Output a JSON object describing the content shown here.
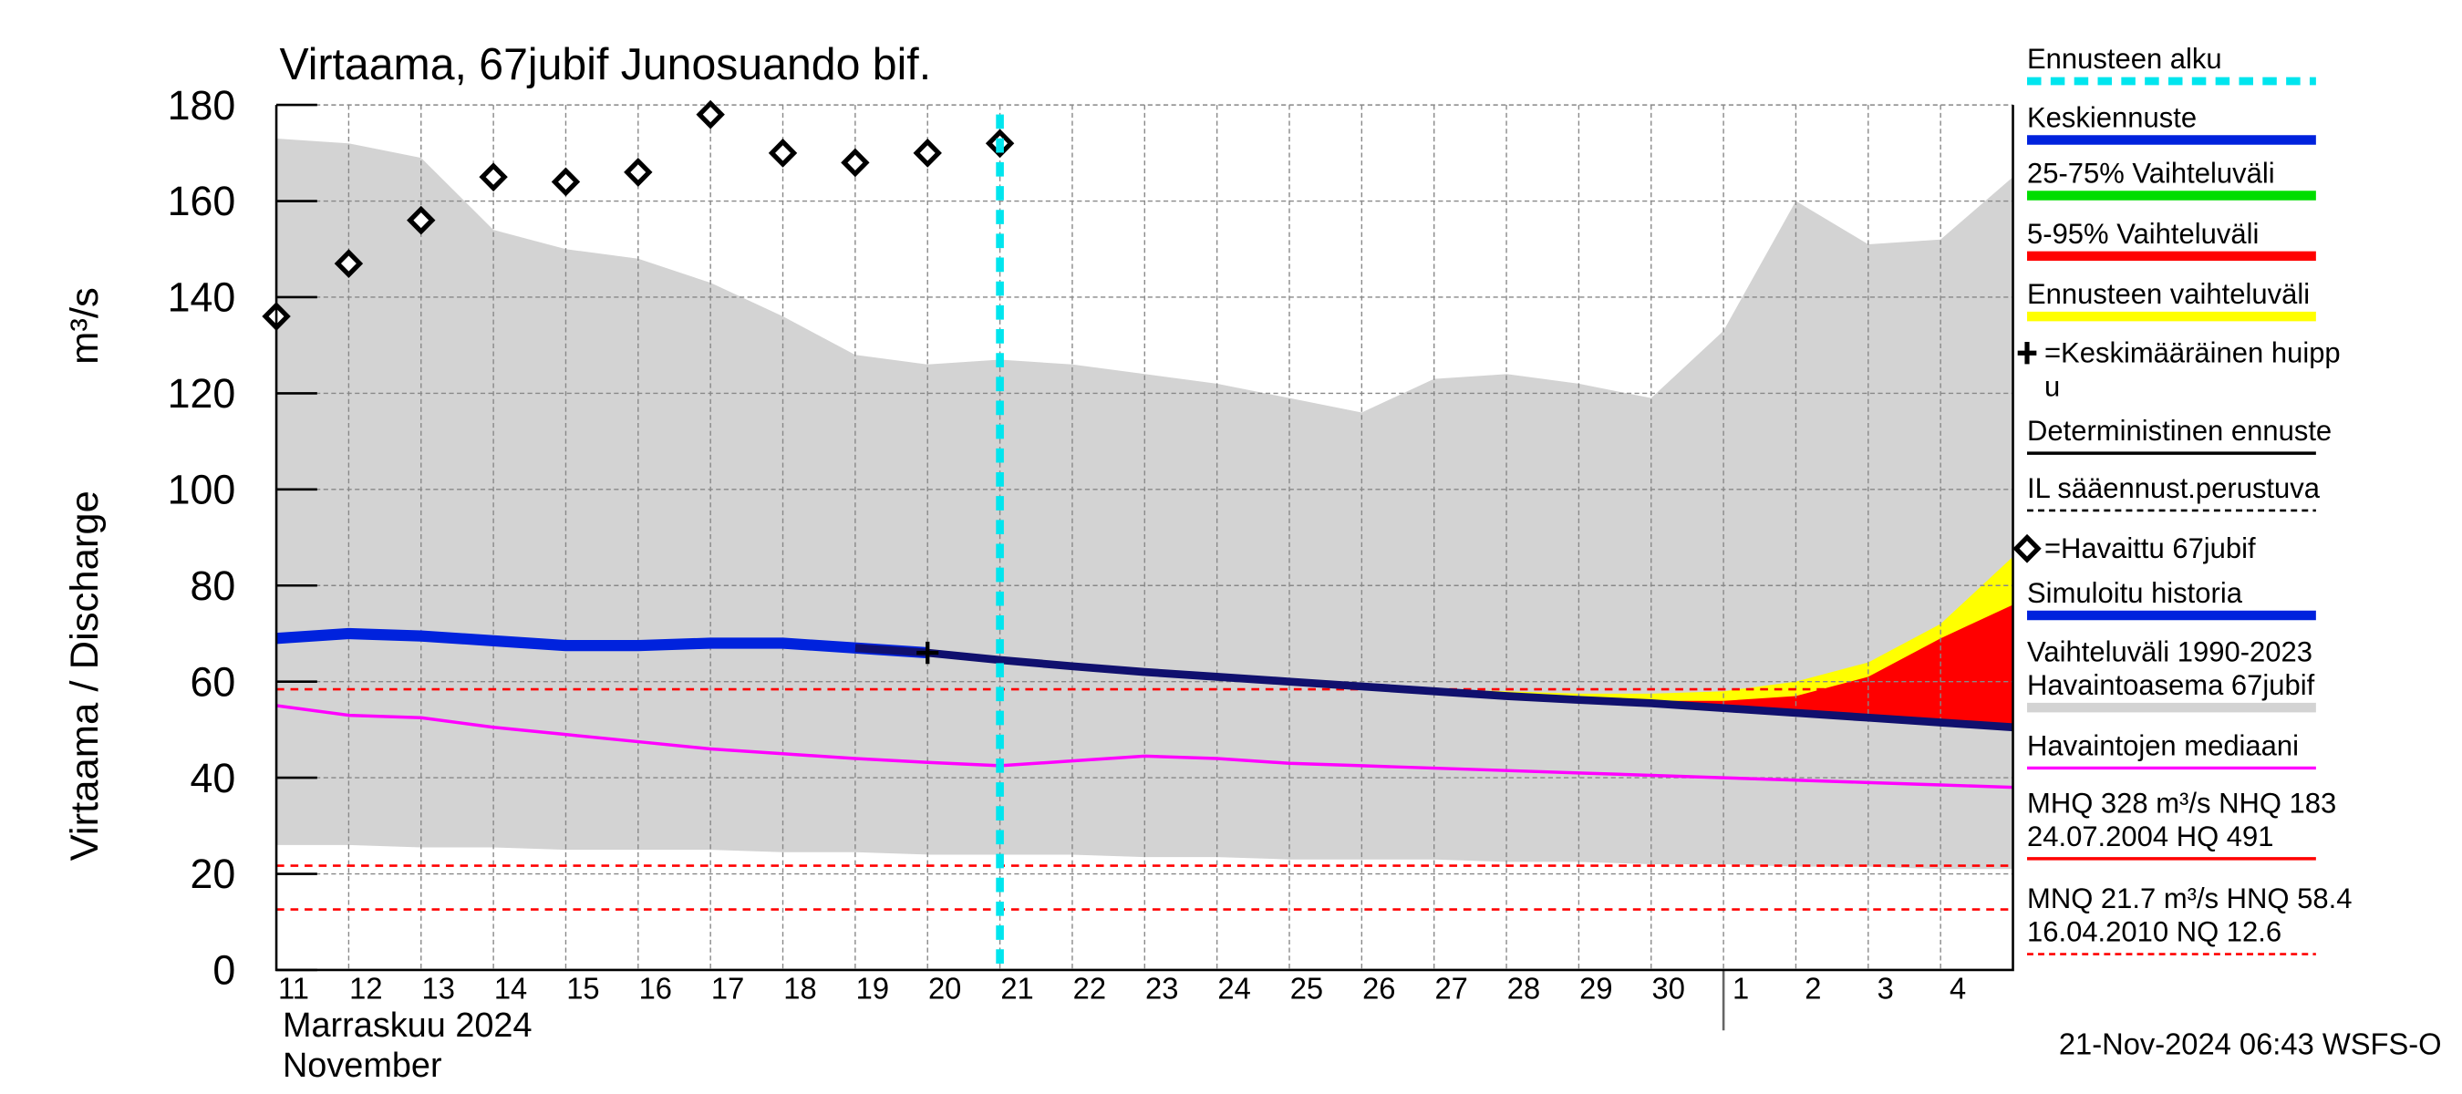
{
  "chart_data": {
    "type": "hydrograph",
    "title": "Virtaama, 67jubif Junosuando bif.",
    "y_label": "Virtaama / Discharge",
    "y_unit": "m³/s",
    "month_label": "Marraskuu 2024",
    "month_label_en": "November",
    "timestamp": "21-Nov-2024 06:43 WSFS-O",
    "categories": [
      "11",
      "12",
      "13",
      "14",
      "15",
      "16",
      "17",
      "18",
      "19",
      "20",
      "21",
      "22",
      "23",
      "24",
      "25",
      "26",
      "27",
      "28",
      "29",
      "30",
      "1",
      "2",
      "3",
      "4"
    ],
    "xlim": [
      0,
      24
    ],
    "month_break": 20,
    "forecast_start": 10,
    "ylim": [
      0,
      180
    ],
    "yticks": [
      0,
      20,
      40,
      60,
      80,
      100,
      120,
      140,
      160,
      180
    ],
    "grid": true,
    "series": [
      {
        "kind": "band",
        "color": "#d3d3d3",
        "x": [
          0,
          1,
          2,
          3,
          4,
          5,
          6,
          7,
          8,
          9,
          10,
          11,
          12,
          13,
          14,
          15,
          16,
          17,
          18,
          19,
          20,
          21,
          22,
          23,
          24
        ],
        "upper": [
          173,
          172,
          169,
          154,
          150,
          148,
          143,
          136,
          128,
          126,
          127,
          126,
          124,
          122,
          119,
          116,
          123,
          124,
          122,
          119,
          133,
          160,
          151,
          152,
          165
        ],
        "lower": [
          26,
          26,
          25.5,
          25.5,
          25,
          25,
          25,
          24.5,
          24.5,
          24,
          24,
          24,
          23.5,
          23.5,
          23,
          23,
          23,
          22.5,
          22.5,
          22,
          22,
          21.5,
          21.5,
          21,
          21
        ]
      },
      {
        "kind": "band",
        "color": "#ffff00",
        "x": [
          14,
          15,
          16,
          17,
          18,
          19,
          20,
          21,
          22,
          23,
          24
        ],
        "upper": [
          60,
          59,
          58.5,
          58,
          57.5,
          57.5,
          58,
          60,
          64,
          72,
          86
        ],
        "lower": [
          60,
          59,
          58,
          57,
          56,
          55.5,
          54.5,
          53.5,
          52.5,
          51.5,
          50.5
        ]
      },
      {
        "kind": "band",
        "color": "#ff0000",
        "x": [
          17,
          18,
          19,
          20,
          21,
          22,
          23,
          24
        ],
        "upper": [
          57,
          56.5,
          56,
          56,
          57,
          61,
          69,
          76
        ],
        "lower": [
          57,
          56,
          55.5,
          54.5,
          53.5,
          52.5,
          51.5,
          50.5
        ]
      },
      {
        "kind": "line",
        "color": "#ff00ff",
        "width": 2,
        "x": [
          0,
          1,
          2,
          3,
          4,
          5,
          6,
          7,
          8,
          9,
          10,
          11,
          12,
          13,
          14,
          15,
          16,
          17,
          18,
          19,
          20,
          21,
          22,
          23,
          24
        ],
        "values": [
          55,
          53,
          52.5,
          50.5,
          49,
          47.5,
          46,
          45,
          44,
          43.2,
          42.5,
          43.5,
          44.5,
          44,
          43,
          42.5,
          42,
          41.5,
          41,
          40.5,
          40,
          39.5,
          39,
          38.5,
          38
        ]
      },
      {
        "kind": "line",
        "color": "#0022dd",
        "width": 7,
        "x": [
          0,
          1,
          2,
          3,
          4,
          5,
          6,
          7,
          8,
          9
        ],
        "values": [
          69,
          70,
          69.5,
          68.5,
          67.5,
          67.5,
          68,
          68,
          67,
          66
        ]
      },
      {
        "kind": "line",
        "color": "#10106e",
        "width": 5,
        "x": [
          8,
          9,
          10,
          11,
          12,
          13,
          14,
          15,
          16,
          17,
          18,
          19,
          20,
          21,
          22,
          23,
          24
        ],
        "values": [
          67,
          66,
          64.5,
          63.2,
          62,
          61,
          60,
          59,
          58,
          57,
          56.2,
          55.5,
          54.5,
          53.5,
          52.5,
          51.5,
          50.5
        ]
      },
      {
        "kind": "diamond",
        "color": "#000000",
        "x": [
          0,
          1,
          2,
          3,
          4,
          5,
          6,
          7,
          8,
          9,
          10
        ],
        "values": [
          136,
          147,
          156,
          165,
          164,
          166,
          178,
          170,
          168,
          170,
          172
        ]
      },
      {
        "kind": "cross",
        "color": "#000000",
        "x": [
          9
        ],
        "values": [
          66
        ]
      }
    ],
    "hlines": [
      {
        "value": 58.4,
        "color": "#ff0000"
      },
      {
        "value": 21.7,
        "color": "#ff0000"
      },
      {
        "value": 12.6,
        "color": "#ff0000"
      }
    ],
    "legend": [
      {
        "lines": [
          "Ennusteen alku"
        ],
        "color": "#00e5ee",
        "style": "dashed"
      },
      {
        "lines": [
          "Keskiennuste"
        ],
        "color": "#0022dd",
        "style": "thick"
      },
      {
        "lines": [
          "25-75% Vaihteluväli"
        ],
        "color": "#00dd00",
        "style": "thick"
      },
      {
        "lines": [
          "5-95% Vaihteluväli"
        ],
        "color": "#ff0000",
        "style": "thick"
      },
      {
        "lines": [
          "Ennusteen vaihteluväli"
        ],
        "color": "#ffff00",
        "style": "thick"
      },
      {
        "lines": [
          "=Keskimääräinen huipp",
          "u"
        ],
        "color": "#000000",
        "style": "cross"
      },
      {
        "lines": [
          "Deterministinen ennuste"
        ],
        "color": "#000000",
        "style": "thin"
      },
      {
        "lines": [
          "IL sääennust.perustuva"
        ],
        "color": "#000000",
        "style": "dotted"
      },
      {
        "lines": [
          "=Havaittu 67jubif"
        ],
        "color": "#000000",
        "style": "diamond"
      },
      {
        "lines": [
          "Simuloitu historia"
        ],
        "color": "#0022dd",
        "style": "thick"
      },
      {
        "lines": [
          "Vaihteluväli 1990-2023",
          " Havaintoasema 67jubif"
        ],
        "color": "#d3d3d3",
        "style": "thick"
      },
      {
        "lines": [
          "Havaintojen mediaani"
        ],
        "color": "#ff00ff",
        "style": "thin"
      },
      {
        "lines": [
          "MHQ  328 m³/s NHQ  183",
          "24.07.2004 HQ  491"
        ],
        "color": "#ff0000",
        "style": "thin"
      },
      {
        "lines": [
          "MNQ 21.7 m³/s HNQ 58.4",
          "16.04.2010 NQ 12.6"
        ],
        "color": "#ff0000",
        "style": "dotted"
      }
    ]
  }
}
